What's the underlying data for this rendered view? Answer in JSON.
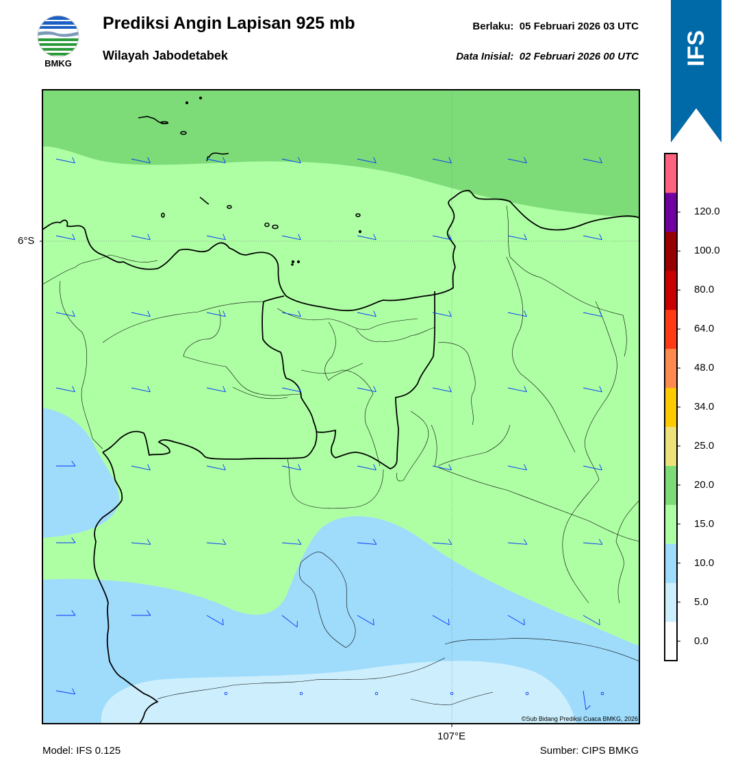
{
  "header": {
    "title": "Prediksi Angin Lapisan 925 mb",
    "subtitle": "Wilayah Jabodetabek",
    "valid_text": "Berlaku:  05 Februari 2026 03 UTC",
    "init_text": "Data Inisial:  02 Februari 2026 00 UTC"
  },
  "logo": {
    "text": "BMKG",
    "icon": "bmkg-logo-icon"
  },
  "ribbon": {
    "text": "IFS",
    "color": "#0069a8"
  },
  "map": {
    "lat_label": "6°S",
    "lon_label": "107°E",
    "copyright": "©Sub Bidang Prediksi Cuaca BMKG, 2026",
    "wind_barb_color": "#0033ff"
  },
  "colorbar": {
    "labels": [
      "0.0",
      "5.0",
      "10.0",
      "15.0",
      "20.0",
      "25.0",
      "34.0",
      "48.0",
      "64.0",
      "80.0",
      "100.0",
      "120.0"
    ],
    "colors": [
      "#ffffff",
      "#cdeffd",
      "#9fdbfb",
      "#aeffa4",
      "#7ddc77",
      "#ede27a",
      "#ffcb00",
      "#ff8a4f",
      "#ff3a14",
      "#c80000",
      "#980000",
      "#7000a0",
      "#ff6380"
    ]
  },
  "footer": {
    "model": "Model: IFS 0.125",
    "source": "Sumber: CIPS BMKG"
  }
}
